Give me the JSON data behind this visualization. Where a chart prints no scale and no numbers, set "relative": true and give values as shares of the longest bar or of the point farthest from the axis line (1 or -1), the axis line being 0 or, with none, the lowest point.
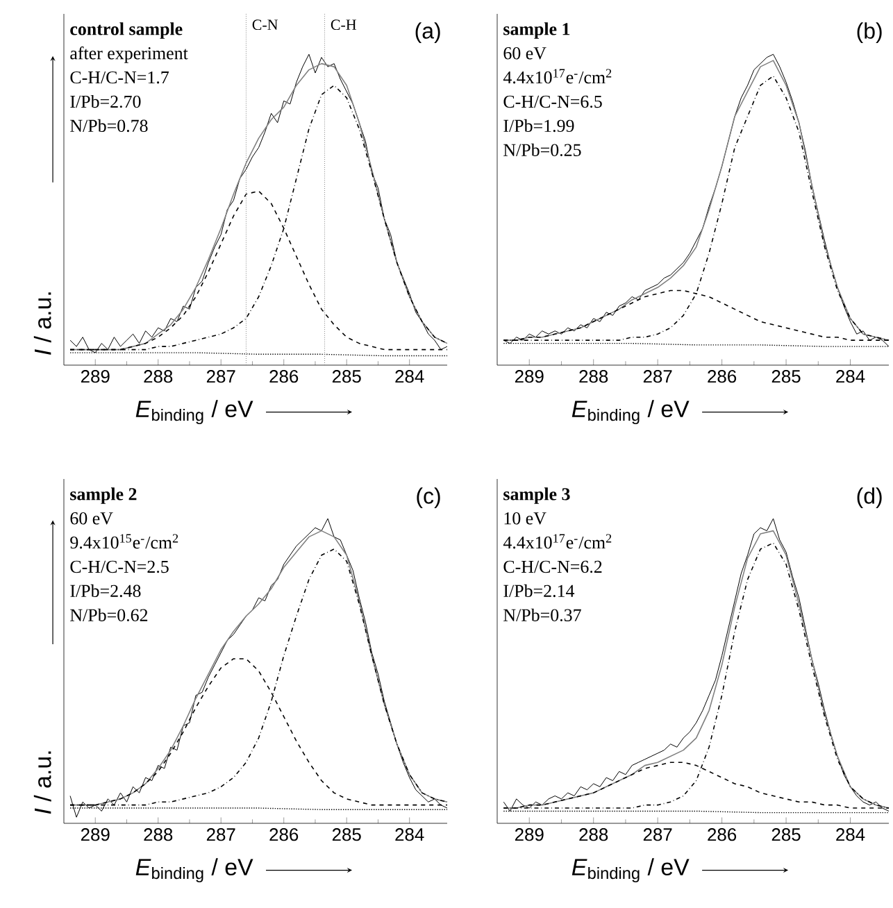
{
  "chart_data": [
    {
      "type": "line",
      "title": "(a)",
      "xlabel": "*E*$_{binding}$ / eV",
      "ylabel": "*I* / a.u.",
      "relative": true,
      "annotations": [
        "control sample",
        "after experiment",
        "C-H/C-N=1.7",
        "I/Pb=2.70",
        "N/Pb=0.78"
      ],
      "xlim": [
        289.5,
        283.4
      ],
      "xticks": [
        289,
        288,
        287,
        286,
        285,
        284
      ],
      "ref_lines": [
        {
          "axis": "x",
          "value": 286.6,
          "label": "C-N",
          "color": "#808080",
          "line_style": "dotted"
        },
        {
          "axis": "x",
          "value": 285.35,
          "label": "C-H",
          "color": "#808080",
          "line_style": "dotted"
        }
      ],
      "series": [
        {
          "color": "#000000",
          "line_style": "solid",
          "x": [
            289.4,
            289.3,
            289.2,
            289.1,
            289.0,
            288.9,
            288.8,
            288.7,
            288.6,
            288.5,
            288.4,
            288.3,
            288.2,
            288.1,
            288.0,
            287.9,
            287.8,
            287.7,
            287.6,
            287.5,
            287.4,
            287.3,
            287.2,
            287.1,
            287.0,
            286.9,
            286.8,
            286.7,
            286.6,
            286.5,
            286.4,
            286.3,
            286.2,
            286.1,
            286.0,
            285.9,
            285.8,
            285.7,
            285.6,
            285.5,
            285.4,
            285.3,
            285.2,
            285.1,
            285.0,
            284.9,
            284.8,
            284.7,
            284.6,
            284.5,
            284.4,
            284.3,
            284.2,
            284.1,
            284.0,
            283.9,
            283.8,
            283.7,
            283.6,
            283.5,
            283.4
          ],
          "values": [
            0.08,
            0.06,
            0.09,
            0.05,
            0.04,
            0.07,
            0.05,
            0.09,
            0.06,
            0.08,
            0.1,
            0.07,
            0.11,
            0.09,
            0.12,
            0.11,
            0.15,
            0.14,
            0.19,
            0.18,
            0.25,
            0.27,
            0.33,
            0.38,
            0.42,
            0.5,
            0.53,
            0.6,
            0.63,
            0.67,
            0.7,
            0.75,
            0.81,
            0.78,
            0.85,
            0.84,
            0.91,
            0.96,
            1.0,
            0.94,
            0.99,
            0.96,
            0.97,
            0.92,
            0.88,
            0.84,
            0.78,
            0.72,
            0.62,
            0.57,
            0.47,
            0.42,
            0.33,
            0.28,
            0.23,
            0.17,
            0.14,
            0.1,
            0.08,
            0.05,
            0.06
          ]
        },
        {
          "color": "#808080",
          "line_style": "solid",
          "x": [
            289.4,
            289.2,
            289.0,
            288.8,
            288.6,
            288.4,
            288.2,
            288.0,
            287.8,
            287.6,
            287.4,
            287.2,
            287.0,
            286.8,
            286.6,
            286.4,
            286.2,
            286.0,
            285.8,
            285.6,
            285.4,
            285.2,
            285.0,
            284.8,
            284.6,
            284.4,
            284.2,
            284.0,
            283.8,
            283.6,
            283.4
          ],
          "values": [
            0.05,
            0.05,
            0.05,
            0.05,
            0.05,
            0.06,
            0.07,
            0.1,
            0.13,
            0.18,
            0.25,
            0.34,
            0.44,
            0.55,
            0.65,
            0.73,
            0.79,
            0.83,
            0.9,
            0.95,
            0.97,
            0.96,
            0.9,
            0.78,
            0.63,
            0.47,
            0.33,
            0.22,
            0.14,
            0.09,
            0.07
          ]
        },
        {
          "color": "#000000",
          "line_style": "dashed",
          "x": [
            289.4,
            289.2,
            289.0,
            288.8,
            288.6,
            288.4,
            288.2,
            288.0,
            287.8,
            287.6,
            287.4,
            287.2,
            287.0,
            286.8,
            286.6,
            286.4,
            286.2,
            286.0,
            285.8,
            285.6,
            285.4,
            285.2,
            285.0,
            284.8,
            284.6,
            284.4,
            284.2,
            284.0,
            283.8,
            283.6,
            283.4
          ],
          "values": [
            0.05,
            0.05,
            0.05,
            0.05,
            0.05,
            0.06,
            0.07,
            0.09,
            0.12,
            0.16,
            0.22,
            0.3,
            0.39,
            0.48,
            0.55,
            0.56,
            0.52,
            0.44,
            0.35,
            0.26,
            0.18,
            0.13,
            0.09,
            0.07,
            0.06,
            0.05,
            0.05,
            0.05,
            0.05,
            0.05,
            0.05
          ]
        },
        {
          "color": "#000000",
          "line_style": "dashdot",
          "x": [
            289.4,
            289.2,
            289.0,
            288.8,
            288.6,
            288.4,
            288.2,
            288.0,
            287.8,
            287.6,
            287.4,
            287.2,
            287.0,
            286.8,
            286.6,
            286.4,
            286.2,
            286.0,
            285.8,
            285.6,
            285.4,
            285.2,
            285.0,
            284.8,
            284.6,
            284.4,
            284.2,
            284.0,
            283.8,
            283.6,
            283.4
          ],
          "values": [
            0.05,
            0.05,
            0.05,
            0.05,
            0.05,
            0.05,
            0.05,
            0.06,
            0.06,
            0.07,
            0.08,
            0.09,
            0.1,
            0.12,
            0.15,
            0.22,
            0.32,
            0.44,
            0.6,
            0.76,
            0.87,
            0.9,
            0.86,
            0.76,
            0.62,
            0.47,
            0.33,
            0.22,
            0.14,
            0.09,
            0.07
          ]
        },
        {
          "color": "#000000",
          "line_style": "dotted",
          "x": [
            289.4,
            288.4,
            287.4,
            286.4,
            285.4,
            284.4,
            283.4
          ],
          "values": [
            0.04,
            0.04,
            0.04,
            0.035,
            0.035,
            0.03,
            0.03
          ]
        }
      ]
    },
    {
      "type": "line",
      "title": "(b)",
      "xlabel": "*E*$_{binding}$ / eV",
      "relative": true,
      "annotations": [
        "sample 1",
        "60 eV",
        "4.4x10$^{17}$e$^{-}$/cm$^{2}$",
        "C-H/C-N=6.5",
        "I/Pb=1.99",
        "N/Pb=0.25"
      ],
      "xlim": [
        289.5,
        283.4
      ],
      "xticks": [
        289,
        288,
        287,
        286,
        285,
        284
      ],
      "series": [
        {
          "color": "#000000",
          "line_style": "solid",
          "x": [
            289.4,
            289.3,
            289.2,
            289.1,
            289.0,
            288.9,
            288.8,
            288.7,
            288.6,
            288.5,
            288.4,
            288.3,
            288.2,
            288.1,
            288.0,
            287.9,
            287.8,
            287.7,
            287.6,
            287.5,
            287.4,
            287.3,
            287.2,
            287.1,
            287.0,
            286.9,
            286.8,
            286.7,
            286.6,
            286.5,
            286.4,
            286.3,
            286.2,
            286.1,
            286.0,
            285.9,
            285.8,
            285.7,
            285.6,
            285.5,
            285.4,
            285.3,
            285.2,
            285.1,
            285.0,
            284.9,
            284.8,
            284.7,
            284.6,
            284.5,
            284.4,
            284.3,
            284.2,
            284.1,
            284.0,
            283.9,
            283.8,
            283.7,
            283.6,
            283.5,
            283.4
          ],
          "values": [
            0.08,
            0.07,
            0.09,
            0.08,
            0.1,
            0.09,
            0.11,
            0.1,
            0.11,
            0.1,
            0.12,
            0.11,
            0.13,
            0.12,
            0.15,
            0.14,
            0.17,
            0.16,
            0.19,
            0.2,
            0.22,
            0.21,
            0.24,
            0.25,
            0.26,
            0.28,
            0.29,
            0.31,
            0.33,
            0.36,
            0.4,
            0.44,
            0.51,
            0.57,
            0.64,
            0.72,
            0.8,
            0.86,
            0.9,
            0.95,
            0.97,
            0.99,
            1.0,
            0.96,
            0.91,
            0.85,
            0.78,
            0.69,
            0.58,
            0.49,
            0.4,
            0.32,
            0.25,
            0.19,
            0.14,
            0.1,
            0.11,
            0.08,
            0.09,
            0.08,
            0.06
          ]
        },
        {
          "color": "#808080",
          "line_style": "solid",
          "x": [
            289.4,
            289.2,
            289.0,
            288.8,
            288.6,
            288.4,
            288.2,
            288.0,
            287.8,
            287.6,
            287.4,
            287.2,
            287.0,
            286.8,
            286.6,
            286.4,
            286.2,
            286.0,
            285.8,
            285.6,
            285.4,
            285.2,
            285.0,
            284.8,
            284.6,
            284.4,
            284.2,
            284.0,
            283.8,
            283.6,
            283.4
          ],
          "values": [
            0.08,
            0.08,
            0.09,
            0.09,
            0.1,
            0.11,
            0.12,
            0.14,
            0.16,
            0.18,
            0.21,
            0.23,
            0.25,
            0.28,
            0.32,
            0.38,
            0.5,
            0.64,
            0.8,
            0.88,
            0.96,
            0.98,
            0.9,
            0.78,
            0.58,
            0.39,
            0.25,
            0.15,
            0.1,
            0.09,
            0.08
          ]
        },
        {
          "color": "#000000",
          "line_style": "dashed",
          "x": [
            289.4,
            289.2,
            289.0,
            288.8,
            288.6,
            288.4,
            288.2,
            288.0,
            287.8,
            287.6,
            287.4,
            287.2,
            287.0,
            286.8,
            286.6,
            286.4,
            286.2,
            286.0,
            285.8,
            285.6,
            285.4,
            285.2,
            285.0,
            284.8,
            284.6,
            284.4,
            284.2,
            284.0,
            283.8,
            283.6,
            283.4
          ],
          "values": [
            0.08,
            0.08,
            0.09,
            0.09,
            0.1,
            0.11,
            0.12,
            0.14,
            0.16,
            0.18,
            0.2,
            0.22,
            0.23,
            0.24,
            0.24,
            0.23,
            0.22,
            0.2,
            0.18,
            0.16,
            0.14,
            0.13,
            0.12,
            0.11,
            0.1,
            0.09,
            0.09,
            0.08,
            0.08,
            0.08,
            0.08
          ]
        },
        {
          "color": "#000000",
          "line_style": "dashdot",
          "x": [
            289.4,
            289.2,
            289.0,
            288.8,
            288.6,
            288.4,
            288.2,
            288.0,
            287.8,
            287.6,
            287.4,
            287.2,
            287.0,
            286.8,
            286.6,
            286.4,
            286.2,
            286.0,
            285.8,
            285.6,
            285.4,
            285.2,
            285.0,
            284.8,
            284.6,
            284.4,
            284.2,
            284.0,
            283.8,
            283.6,
            283.4
          ],
          "values": [
            0.08,
            0.08,
            0.08,
            0.08,
            0.08,
            0.08,
            0.08,
            0.08,
            0.08,
            0.08,
            0.09,
            0.09,
            0.1,
            0.12,
            0.16,
            0.23,
            0.36,
            0.52,
            0.7,
            0.8,
            0.9,
            0.93,
            0.86,
            0.75,
            0.56,
            0.38,
            0.24,
            0.15,
            0.1,
            0.09,
            0.08
          ]
        },
        {
          "color": "#000000",
          "line_style": "dotted",
          "x": [
            289.4,
            288.4,
            287.4,
            286.4,
            285.4,
            284.4,
            283.4
          ],
          "values": [
            0.07,
            0.07,
            0.07,
            0.065,
            0.065,
            0.06,
            0.06
          ]
        }
      ]
    },
    {
      "type": "line",
      "title": "(c)",
      "xlabel": "*E*$_{binding}$ / eV",
      "ylabel": "*I* / a.u.",
      "relative": true,
      "annotations": [
        "sample 2",
        "60 eV",
        "9.4x10$^{15}$e$^{-}$/cm$^{2}$",
        "C-H/C-N=2.5",
        "I/Pb=2.48",
        "N/Pb=0.62"
      ],
      "xlim": [
        289.5,
        283.4
      ],
      "xticks": [
        289,
        288,
        287,
        286,
        285,
        284
      ],
      "series": [
        {
          "color": "#000000",
          "line_style": "solid",
          "x": [
            289.4,
            289.3,
            289.2,
            289.1,
            289.0,
            288.9,
            288.8,
            288.7,
            288.6,
            288.5,
            288.4,
            288.3,
            288.2,
            288.1,
            288.0,
            287.9,
            287.8,
            287.7,
            287.6,
            287.5,
            287.4,
            287.3,
            287.2,
            287.1,
            287.0,
            286.9,
            286.8,
            286.7,
            286.6,
            286.5,
            286.4,
            286.3,
            286.2,
            286.1,
            286.0,
            285.9,
            285.8,
            285.7,
            285.6,
            285.5,
            285.4,
            285.3,
            285.2,
            285.1,
            285.0,
            284.9,
            284.8,
            284.7,
            284.6,
            284.5,
            284.4,
            284.3,
            284.2,
            284.1,
            284.0,
            283.9,
            283.8,
            283.7,
            283.6,
            283.5,
            283.4
          ],
          "values": [
            0.09,
            0.02,
            0.07,
            0.05,
            0.06,
            0.04,
            0.08,
            0.06,
            0.1,
            0.07,
            0.12,
            0.1,
            0.15,
            0.14,
            0.19,
            0.18,
            0.25,
            0.24,
            0.32,
            0.33,
            0.42,
            0.43,
            0.48,
            0.52,
            0.56,
            0.6,
            0.62,
            0.65,
            0.68,
            0.7,
            0.74,
            0.73,
            0.78,
            0.8,
            0.85,
            0.88,
            0.91,
            0.93,
            0.95,
            0.97,
            0.96,
            1.0,
            0.94,
            0.93,
            0.88,
            0.83,
            0.74,
            0.66,
            0.56,
            0.49,
            0.4,
            0.33,
            0.26,
            0.2,
            0.15,
            0.11,
            0.09,
            0.07,
            0.08,
            0.06,
            0.05
          ]
        },
        {
          "color": "#808080",
          "line_style": "solid",
          "x": [
            289.4,
            289.2,
            289.0,
            288.8,
            288.6,
            288.4,
            288.2,
            288.0,
            287.8,
            287.6,
            287.4,
            287.2,
            287.0,
            286.8,
            286.6,
            286.4,
            286.2,
            286.0,
            285.8,
            285.6,
            285.4,
            285.2,
            285.0,
            284.8,
            284.6,
            284.4,
            284.2,
            284.0,
            283.8,
            283.6,
            283.4
          ],
          "values": [
            0.06,
            0.06,
            0.06,
            0.07,
            0.08,
            0.1,
            0.13,
            0.18,
            0.24,
            0.32,
            0.41,
            0.49,
            0.57,
            0.63,
            0.68,
            0.72,
            0.77,
            0.84,
            0.89,
            0.94,
            0.96,
            0.94,
            0.88,
            0.73,
            0.55,
            0.39,
            0.26,
            0.16,
            0.1,
            0.08,
            0.07
          ]
        },
        {
          "color": "#000000",
          "line_style": "dashed",
          "x": [
            289.4,
            289.2,
            289.0,
            288.8,
            288.6,
            288.4,
            288.2,
            288.0,
            287.8,
            287.6,
            287.4,
            287.2,
            287.0,
            286.8,
            286.6,
            286.4,
            286.2,
            286.0,
            285.8,
            285.6,
            285.4,
            285.2,
            285.0,
            284.8,
            284.6,
            284.4,
            284.2,
            284.0,
            283.8,
            283.6,
            283.4
          ],
          "values": [
            0.06,
            0.06,
            0.06,
            0.07,
            0.08,
            0.1,
            0.13,
            0.17,
            0.23,
            0.3,
            0.38,
            0.45,
            0.51,
            0.54,
            0.54,
            0.5,
            0.43,
            0.35,
            0.27,
            0.2,
            0.14,
            0.1,
            0.08,
            0.07,
            0.06,
            0.06,
            0.06,
            0.06,
            0.06,
            0.06,
            0.06
          ]
        },
        {
          "color": "#000000",
          "line_style": "dashdot",
          "x": [
            289.4,
            289.2,
            289.0,
            288.8,
            288.6,
            288.4,
            288.2,
            288.0,
            287.8,
            287.6,
            287.4,
            287.2,
            287.0,
            286.8,
            286.6,
            286.4,
            286.2,
            286.0,
            285.8,
            285.6,
            285.4,
            285.2,
            285.0,
            284.8,
            284.6,
            284.4,
            284.2,
            284.0,
            283.8,
            283.6,
            283.4
          ],
          "values": [
            0.06,
            0.06,
            0.06,
            0.06,
            0.06,
            0.06,
            0.06,
            0.07,
            0.07,
            0.08,
            0.09,
            0.1,
            0.12,
            0.15,
            0.2,
            0.28,
            0.4,
            0.55,
            0.68,
            0.8,
            0.88,
            0.9,
            0.86,
            0.72,
            0.55,
            0.39,
            0.26,
            0.16,
            0.1,
            0.08,
            0.07
          ]
        },
        {
          "color": "#000000",
          "line_style": "dotted",
          "x": [
            289.4,
            288.4,
            287.4,
            286.4,
            285.4,
            284.4,
            283.4
          ],
          "values": [
            0.05,
            0.05,
            0.05,
            0.05,
            0.045,
            0.045,
            0.045
          ]
        }
      ]
    },
    {
      "type": "line",
      "title": "(d)",
      "xlabel": "*E*$_{binding}$ / eV",
      "relative": true,
      "annotations": [
        "sample 3",
        "10 eV",
        "4.4x10$^{17}$e$^{-}$/cm$^{2}$",
        "C-H/C-N=6.2",
        "I/Pb=2.14",
        "N/Pb=0.37"
      ],
      "xlim": [
        289.5,
        283.4
      ],
      "xticks": [
        289,
        288,
        287,
        286,
        285,
        284
      ],
      "series": [
        {
          "color": "#000000",
          "line_style": "solid",
          "x": [
            289.4,
            289.3,
            289.2,
            289.1,
            289.0,
            288.9,
            288.8,
            288.7,
            288.6,
            288.5,
            288.4,
            288.3,
            288.2,
            288.1,
            288.0,
            287.9,
            287.8,
            287.7,
            287.6,
            287.5,
            287.4,
            287.3,
            287.2,
            287.1,
            287.0,
            286.9,
            286.8,
            286.7,
            286.6,
            286.5,
            286.4,
            286.3,
            286.2,
            286.1,
            286.0,
            285.9,
            285.8,
            285.7,
            285.6,
            285.5,
            285.4,
            285.3,
            285.2,
            285.1,
            285.0,
            284.9,
            284.8,
            284.7,
            284.6,
            284.5,
            284.4,
            284.3,
            284.2,
            284.1,
            284.0,
            283.9,
            283.8,
            283.7,
            283.6,
            283.5,
            283.4
          ],
          "values": [
            0.07,
            0.04,
            0.08,
            0.06,
            0.05,
            0.07,
            0.06,
            0.08,
            0.09,
            0.08,
            0.1,
            0.09,
            0.12,
            0.11,
            0.13,
            0.12,
            0.15,
            0.14,
            0.17,
            0.16,
            0.19,
            0.2,
            0.21,
            0.22,
            0.23,
            0.24,
            0.26,
            0.25,
            0.28,
            0.3,
            0.33,
            0.37,
            0.42,
            0.47,
            0.55,
            0.64,
            0.73,
            0.82,
            0.88,
            0.95,
            0.97,
            0.96,
            1.0,
            0.93,
            0.89,
            0.81,
            0.74,
            0.64,
            0.54,
            0.46,
            0.37,
            0.29,
            0.22,
            0.16,
            0.12,
            0.09,
            0.07,
            0.06,
            0.07,
            0.05,
            0.04
          ]
        },
        {
          "color": "#808080",
          "line_style": "solid",
          "x": [
            289.4,
            289.2,
            289.0,
            288.8,
            288.6,
            288.4,
            288.2,
            288.0,
            287.8,
            287.6,
            287.4,
            287.2,
            287.0,
            286.8,
            286.6,
            286.4,
            286.2,
            286.0,
            285.8,
            285.6,
            285.4,
            285.2,
            285.0,
            284.8,
            284.6,
            284.4,
            284.2,
            284.0,
            283.8,
            283.6,
            283.4
          ],
          "values": [
            0.05,
            0.05,
            0.06,
            0.06,
            0.07,
            0.08,
            0.09,
            0.1,
            0.12,
            0.14,
            0.16,
            0.19,
            0.2,
            0.22,
            0.24,
            0.28,
            0.37,
            0.52,
            0.71,
            0.87,
            0.95,
            0.96,
            0.88,
            0.72,
            0.54,
            0.36,
            0.22,
            0.12,
            0.08,
            0.06,
            0.05
          ]
        },
        {
          "color": "#000000",
          "line_style": "dashed",
          "x": [
            289.4,
            289.2,
            289.0,
            288.8,
            288.6,
            288.4,
            288.2,
            288.0,
            287.8,
            287.6,
            287.4,
            287.2,
            287.0,
            286.8,
            286.6,
            286.4,
            286.2,
            286.0,
            285.8,
            285.6,
            285.4,
            285.2,
            285.0,
            284.8,
            284.6,
            284.4,
            284.2,
            284.0,
            283.8,
            283.6,
            283.4
          ],
          "values": [
            0.05,
            0.05,
            0.06,
            0.06,
            0.07,
            0.08,
            0.09,
            0.1,
            0.12,
            0.14,
            0.16,
            0.18,
            0.19,
            0.2,
            0.2,
            0.19,
            0.17,
            0.15,
            0.13,
            0.12,
            0.1,
            0.09,
            0.08,
            0.07,
            0.07,
            0.06,
            0.06,
            0.05,
            0.05,
            0.05,
            0.05
          ]
        },
        {
          "color": "#000000",
          "line_style": "dashdot",
          "x": [
            289.4,
            289.2,
            289.0,
            288.8,
            288.6,
            288.4,
            288.2,
            288.0,
            287.8,
            287.6,
            287.4,
            287.2,
            287.0,
            286.8,
            286.6,
            286.4,
            286.2,
            286.0,
            285.8,
            285.6,
            285.4,
            285.2,
            285.0,
            284.8,
            284.6,
            284.4,
            284.2,
            284.0,
            283.8,
            283.6,
            283.4
          ],
          "values": [
            0.05,
            0.05,
            0.05,
            0.05,
            0.05,
            0.05,
            0.05,
            0.05,
            0.05,
            0.05,
            0.05,
            0.06,
            0.06,
            0.07,
            0.09,
            0.14,
            0.25,
            0.42,
            0.63,
            0.8,
            0.9,
            0.92,
            0.85,
            0.7,
            0.52,
            0.35,
            0.21,
            0.12,
            0.08,
            0.06,
            0.05
          ]
        },
        {
          "color": "#000000",
          "line_style": "dotted",
          "x": [
            289.4,
            288.4,
            287.4,
            286.4,
            285.4,
            284.4,
            283.4
          ],
          "values": [
            0.04,
            0.04,
            0.04,
            0.04,
            0.035,
            0.035,
            0.035
          ]
        }
      ]
    }
  ]
}
